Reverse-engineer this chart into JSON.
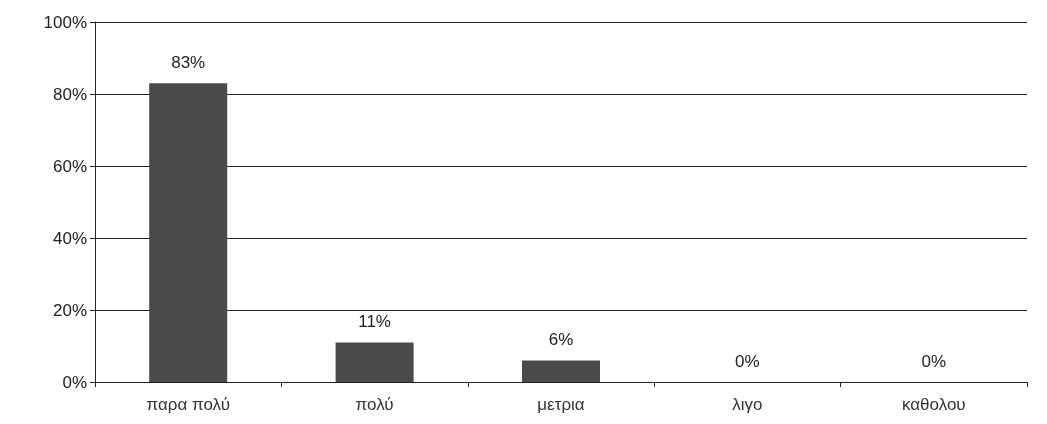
{
  "chart_data": {
    "type": "bar",
    "categories": [
      "παρα πολύ",
      "πολύ",
      "μετρια",
      "λιγο",
      "καθολου"
    ],
    "values": [
      83,
      11,
      6,
      0,
      0
    ],
    "value_labels": [
      "83%",
      "11%",
      "6%",
      "0%",
      "0%"
    ],
    "color": "#4a4a4a",
    "ylim": [
      0,
      100
    ],
    "yticks": [
      {
        "value": 0,
        "label": "0%"
      },
      {
        "value": 20,
        "label": "20%"
      },
      {
        "value": 40,
        "label": "40%"
      },
      {
        "value": 60,
        "label": "60%"
      },
      {
        "value": 80,
        "label": "80%"
      },
      {
        "value": 100,
        "label": "100%"
      }
    ],
    "grid": "y"
  }
}
